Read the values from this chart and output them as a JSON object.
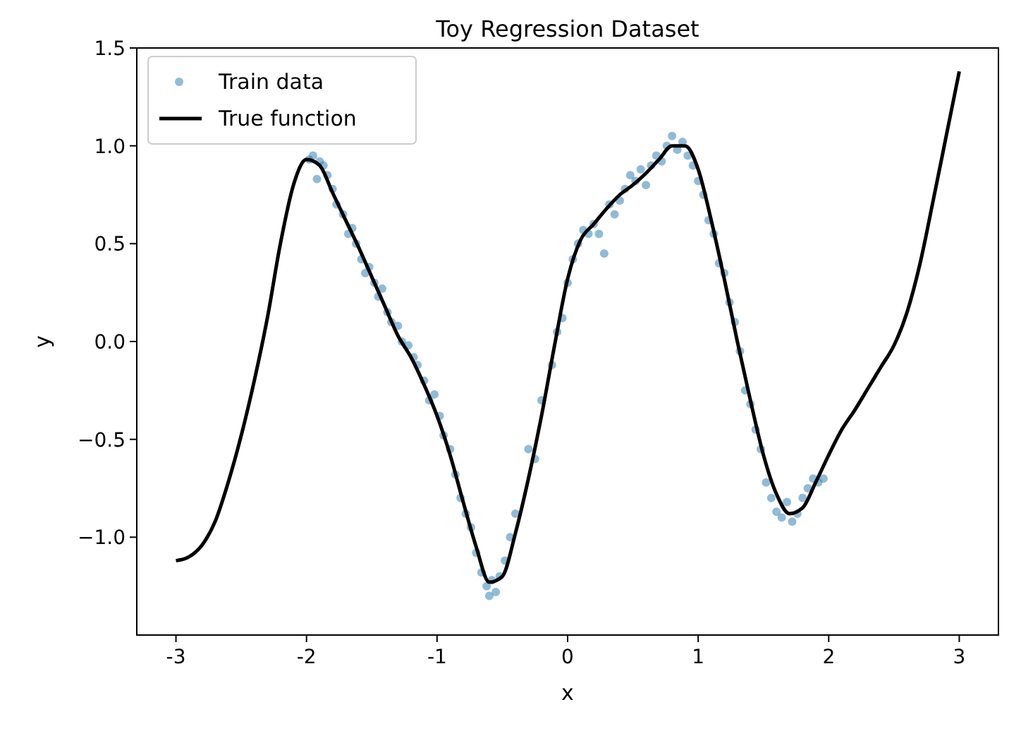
{
  "chart_data": {
    "type": "scatter",
    "title": "Toy Regression Dataset",
    "xlabel": "x",
    "ylabel": "y",
    "xlim": [
      -3.3,
      3.3
    ],
    "ylim": [
      -1.5,
      1.5
    ],
    "xticks": [
      -3,
      -2,
      -1,
      0,
      1,
      2,
      3
    ],
    "yticks": [
      {
        "value": -1,
        "label": "−1.0"
      },
      {
        "value": -0.5,
        "label": "−0.5"
      },
      {
        "value": 0,
        "label": "0.0"
      },
      {
        "value": 0.5,
        "label": "0.5"
      },
      {
        "value": 1,
        "label": "1.0"
      },
      {
        "value": 1.5,
        "label": "1.5"
      }
    ],
    "legend": "top left",
    "grid": false,
    "series": [
      {
        "name": "Train data",
        "color": "#1f77b4",
        "marker": "circle",
        "x": [
          -1.98,
          -1.95,
          -1.92,
          -1.9,
          -1.87,
          -1.84,
          -1.8,
          -1.77,
          -1.72,
          -1.68,
          -1.65,
          -1.62,
          -1.58,
          -1.55,
          -1.52,
          -1.48,
          -1.45,
          -1.42,
          -1.38,
          -1.35,
          -1.3,
          -1.27,
          -1.22,
          -1.18,
          -1.15,
          -1.1,
          -1.06,
          -1.02,
          -0.98,
          -0.95,
          -0.9,
          -0.86,
          -0.82,
          -0.78,
          -0.74,
          -0.7,
          -0.66,
          -0.62,
          -0.6,
          -0.58,
          -0.55,
          -0.52,
          -0.48,
          -0.44,
          -0.4,
          -0.3,
          -0.25,
          -0.2,
          -0.12,
          -0.08,
          -0.04,
          0.0,
          0.04,
          0.08,
          0.12,
          0.16,
          0.2,
          0.24,
          0.28,
          0.32,
          0.36,
          0.4,
          0.44,
          0.48,
          0.52,
          0.56,
          0.6,
          0.64,
          0.68,
          0.72,
          0.76,
          0.8,
          0.84,
          0.88,
          0.92,
          0.96,
          1.0,
          1.04,
          1.08,
          1.12,
          1.16,
          1.2,
          1.24,
          1.28,
          1.32,
          1.36,
          1.4,
          1.44,
          1.48,
          1.52,
          1.56,
          1.6,
          1.64,
          1.68,
          1.72,
          1.76,
          1.8,
          1.84,
          1.88,
          1.92,
          1.96
        ],
        "values": [
          0.93,
          0.95,
          0.83,
          0.92,
          0.9,
          0.85,
          0.78,
          0.7,
          0.65,
          0.55,
          0.58,
          0.5,
          0.42,
          0.35,
          0.38,
          0.3,
          0.23,
          0.27,
          0.15,
          0.1,
          0.08,
          0.0,
          -0.02,
          -0.08,
          -0.12,
          -0.2,
          -0.3,
          -0.27,
          -0.38,
          -0.48,
          -0.55,
          -0.68,
          -0.8,
          -0.88,
          -0.95,
          -1.08,
          -1.18,
          -1.25,
          -1.3,
          -1.22,
          -1.28,
          -1.2,
          -1.12,
          -1.0,
          -0.88,
          -0.55,
          -0.6,
          -0.3,
          -0.12,
          0.05,
          0.12,
          0.3,
          0.42,
          0.5,
          0.57,
          0.55,
          0.6,
          0.55,
          0.45,
          0.7,
          0.65,
          0.72,
          0.78,
          0.85,
          0.82,
          0.88,
          0.8,
          0.9,
          0.95,
          0.92,
          1.0,
          1.05,
          0.98,
          1.02,
          0.95,
          0.9,
          0.82,
          0.75,
          0.62,
          0.55,
          0.4,
          0.35,
          0.2,
          0.1,
          -0.05,
          -0.25,
          -0.32,
          -0.45,
          -0.55,
          -0.72,
          -0.8,
          -0.87,
          -0.9,
          -0.82,
          -0.92,
          -0.88,
          -0.8,
          -0.75,
          -0.7,
          -0.72,
          -0.7
        ]
      },
      {
        "name": "True function",
        "type": "line",
        "color": "#000000",
        "marker": "none",
        "x": [
          -3,
          -2.9,
          -2.8,
          -2.7,
          -2.6,
          -2.5,
          -2.4,
          -2.3,
          -2.2,
          -2.1,
          -2.0,
          -1.9,
          -1.8,
          -1.7,
          -1.6,
          -1.5,
          -1.4,
          -1.3,
          -1.2,
          -1.1,
          -1.0,
          -0.9,
          -0.8,
          -0.7,
          -0.6,
          -0.5,
          -0.4,
          -0.3,
          -0.2,
          -0.1,
          0,
          0.1,
          0.2,
          0.3,
          0.4,
          0.5,
          0.6,
          0.7,
          0.8,
          0.9,
          1.0,
          1.1,
          1.2,
          1.3,
          1.4,
          1.5,
          1.6,
          1.7,
          1.8,
          1.9,
          2.0,
          2.1,
          2.2,
          2.3,
          2.4,
          2.5,
          2.6,
          2.7,
          2.8,
          2.9,
          3.0
        ],
        "values": [
          -1.12,
          -1.1,
          -1.04,
          -0.92,
          -0.72,
          -0.48,
          -0.2,
          0.12,
          0.5,
          0.8,
          0.93,
          0.9,
          0.76,
          0.62,
          0.48,
          0.33,
          0.18,
          0.03,
          -0.08,
          -0.22,
          -0.38,
          -0.58,
          -0.82,
          -1.05,
          -1.23,
          -1.2,
          -0.98,
          -0.7,
          -0.38,
          -0.02,
          0.32,
          0.52,
          0.6,
          0.68,
          0.75,
          0.8,
          0.86,
          0.93,
          1.0,
          1.0,
          0.88,
          0.62,
          0.32,
          0.0,
          -0.3,
          -0.58,
          -0.78,
          -0.88,
          -0.85,
          -0.72,
          -0.58,
          -0.45,
          -0.35,
          -0.24,
          -0.13,
          -0.02,
          0.15,
          0.4,
          0.72,
          1.05,
          1.38
        ]
      }
    ]
  }
}
